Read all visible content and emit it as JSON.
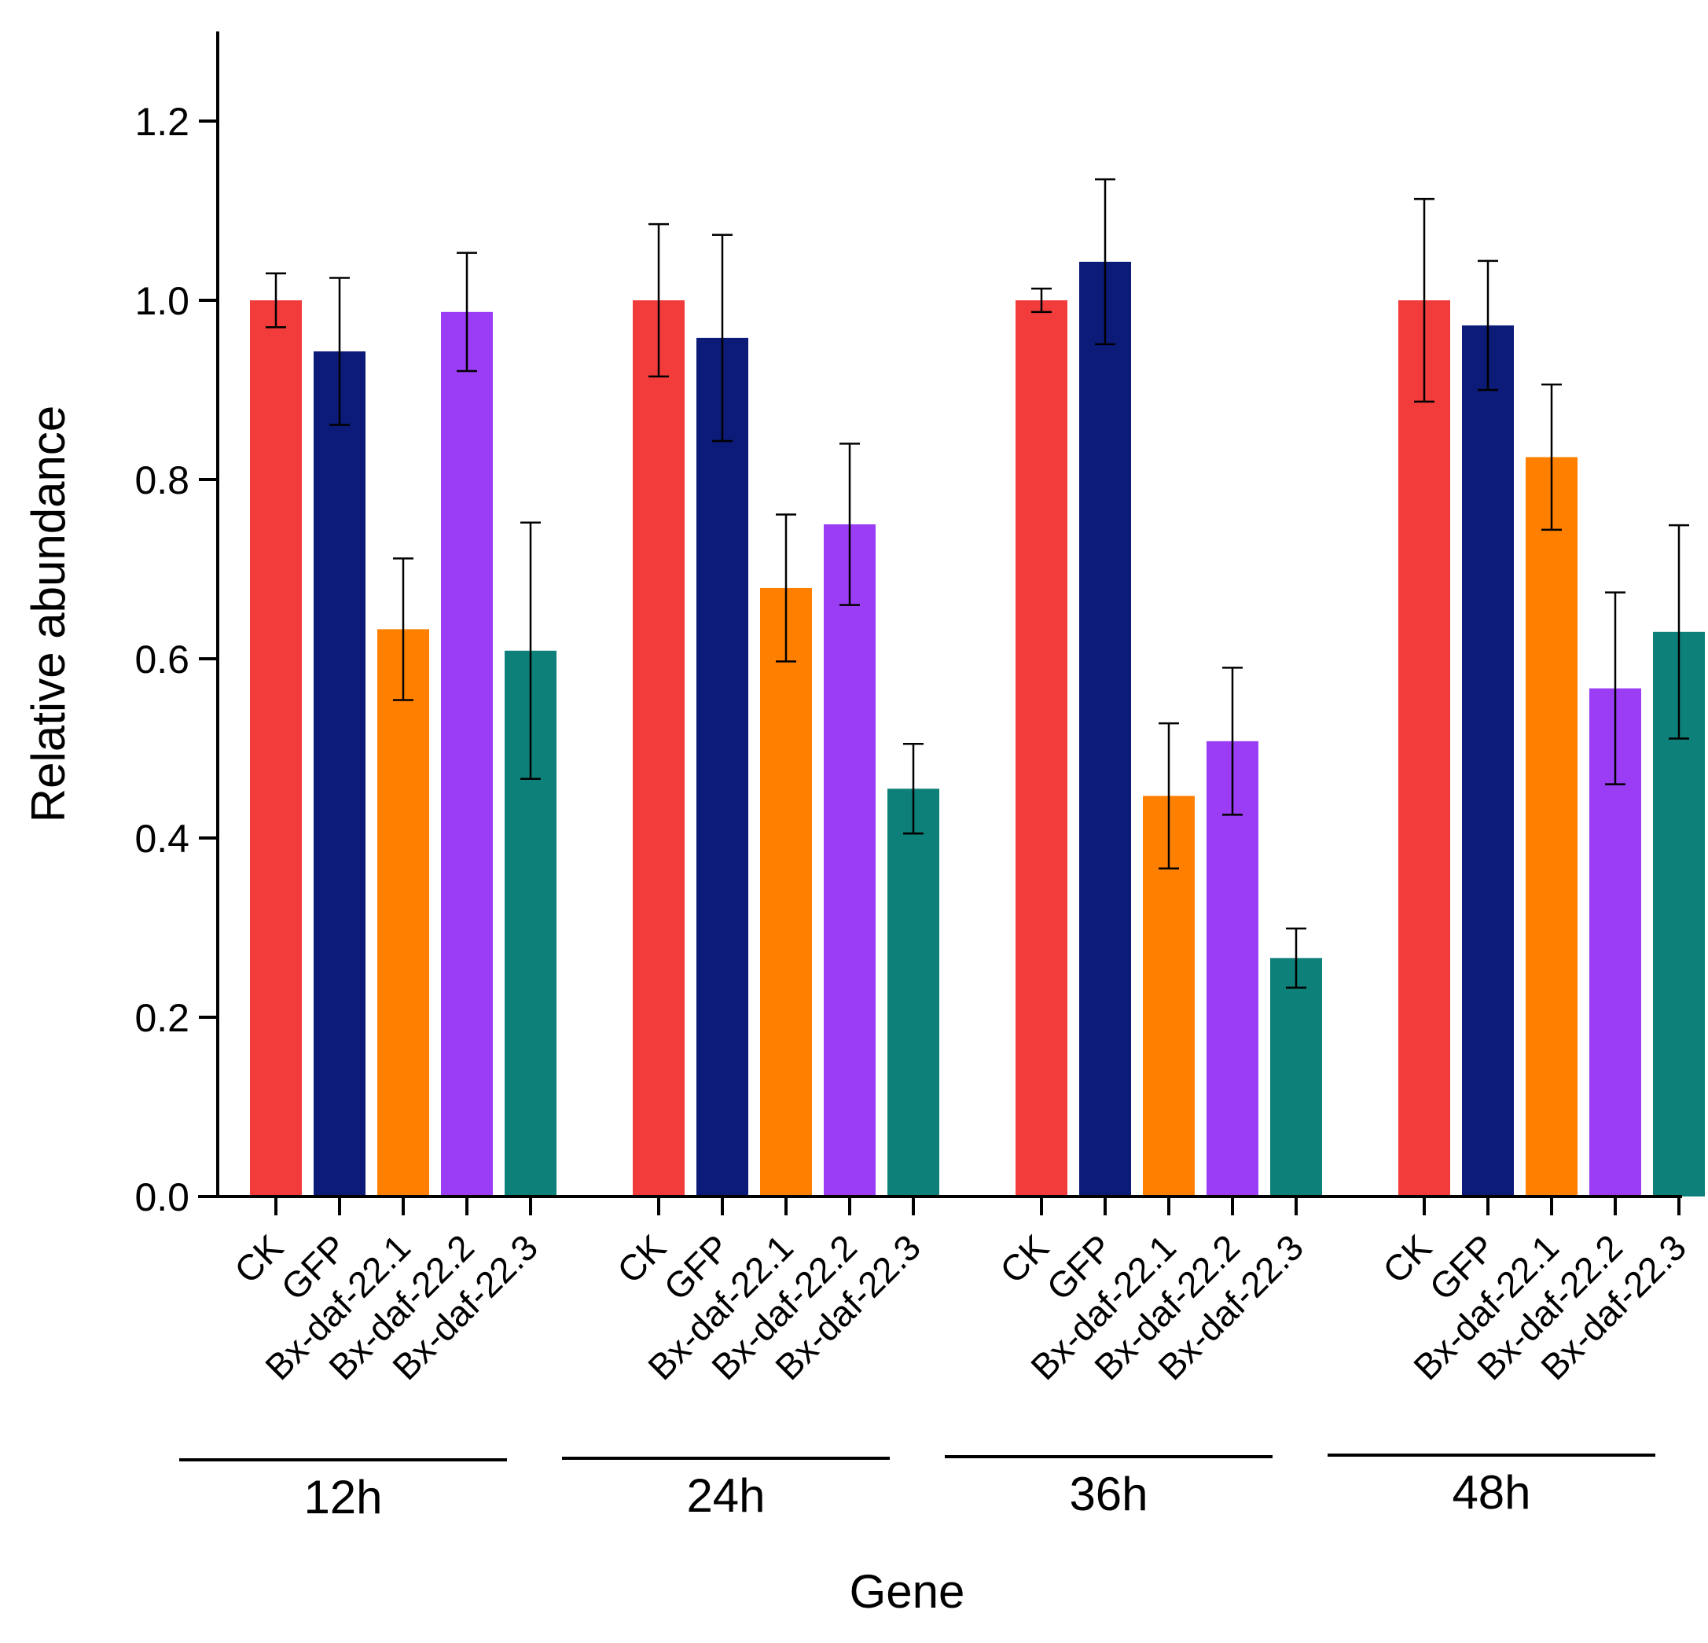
{
  "chart_data": {
    "type": "bar",
    "title": "",
    "xlabel": "Gene",
    "ylabel": "Relative abundance",
    "ylim": [
      0,
      1.3
    ],
    "yticks": [
      "0.0",
      "0.2",
      "0.4",
      "0.6",
      "0.8",
      "1.0",
      "1.2"
    ],
    "grid": false,
    "groups": [
      "12h",
      "24h",
      "36h",
      "48h"
    ],
    "categories": [
      "CK",
      "GFP",
      "Bx-daf-22.1",
      "Bx-daf-22.2",
      "Bx-daf-22.3"
    ],
    "colors": [
      "#f23c3c",
      "#0c1a78",
      "#ff8000",
      "#9a3df5",
      "#0e807a"
    ],
    "values": [
      [
        1.0,
        0.943,
        0.633,
        0.987,
        0.609
      ],
      [
        1.0,
        0.958,
        0.679,
        0.75,
        0.455
      ],
      [
        1.0,
        1.043,
        0.447,
        0.508,
        0.266
      ],
      [
        1.0,
        0.972,
        0.825,
        0.567,
        0.63
      ]
    ],
    "errors": [
      [
        0.03,
        0.082,
        0.079,
        0.066,
        0.143
      ],
      [
        0.085,
        0.115,
        0.082,
        0.09,
        0.05
      ],
      [
        0.013,
        0.092,
        0.081,
        0.082,
        0.033
      ],
      [
        0.113,
        0.072,
        0.081,
        0.107,
        0.119
      ]
    ]
  }
}
